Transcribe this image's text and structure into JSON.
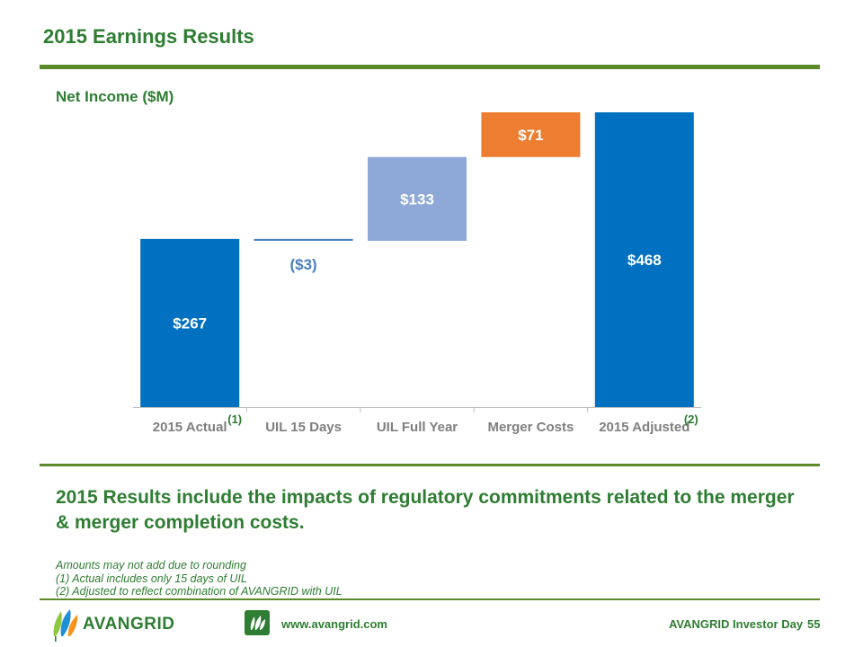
{
  "slide": {
    "title": "2015 Earnings Results",
    "summary": "2015 Results include the impacts of regulatory commitments related to the merger & merger completion costs.",
    "notes": [
      "Amounts may not add due to rounding",
      "(1)  Actual includes only 15 days of UIL",
      "(2)  Adjusted to reflect combination of AVANGRID with UIL"
    ]
  },
  "footer": {
    "logo_text": "AVANGRID",
    "website": "www.avangrid.com",
    "event": "AVANGRID Investor Day",
    "page_number": "55"
  },
  "colors": {
    "brand_green": "#2E7D32",
    "rule_green": "#5C8A2B",
    "total_blue": "#0070C0",
    "light_blue": "#8EA9D8",
    "negative_blue": "#4A7EBB",
    "orange": "#ED7D31",
    "axis_gray": "#BFBFBF",
    "label_gray": "#7F7F7F"
  },
  "chart_data": {
    "type": "bar",
    "subtype": "waterfall",
    "title": "Net Income ($M)",
    "categories": [
      "2015 Actual",
      "UIL 15 Days",
      "UIL Full Year",
      "Merger Costs",
      "2015 Adjusted"
    ],
    "values": [
      267,
      -3,
      133,
      71,
      468
    ],
    "labels": [
      "$267",
      "($3)",
      "$133",
      "$71",
      "$468"
    ],
    "kinds": [
      "total",
      "delta",
      "delta",
      "delta",
      "total"
    ],
    "footnote_refs": [
      "(1)",
      "",
      "",
      "",
      "(2)"
    ],
    "ylim": [
      0,
      468
    ],
    "grid": false,
    "legend": "none"
  }
}
